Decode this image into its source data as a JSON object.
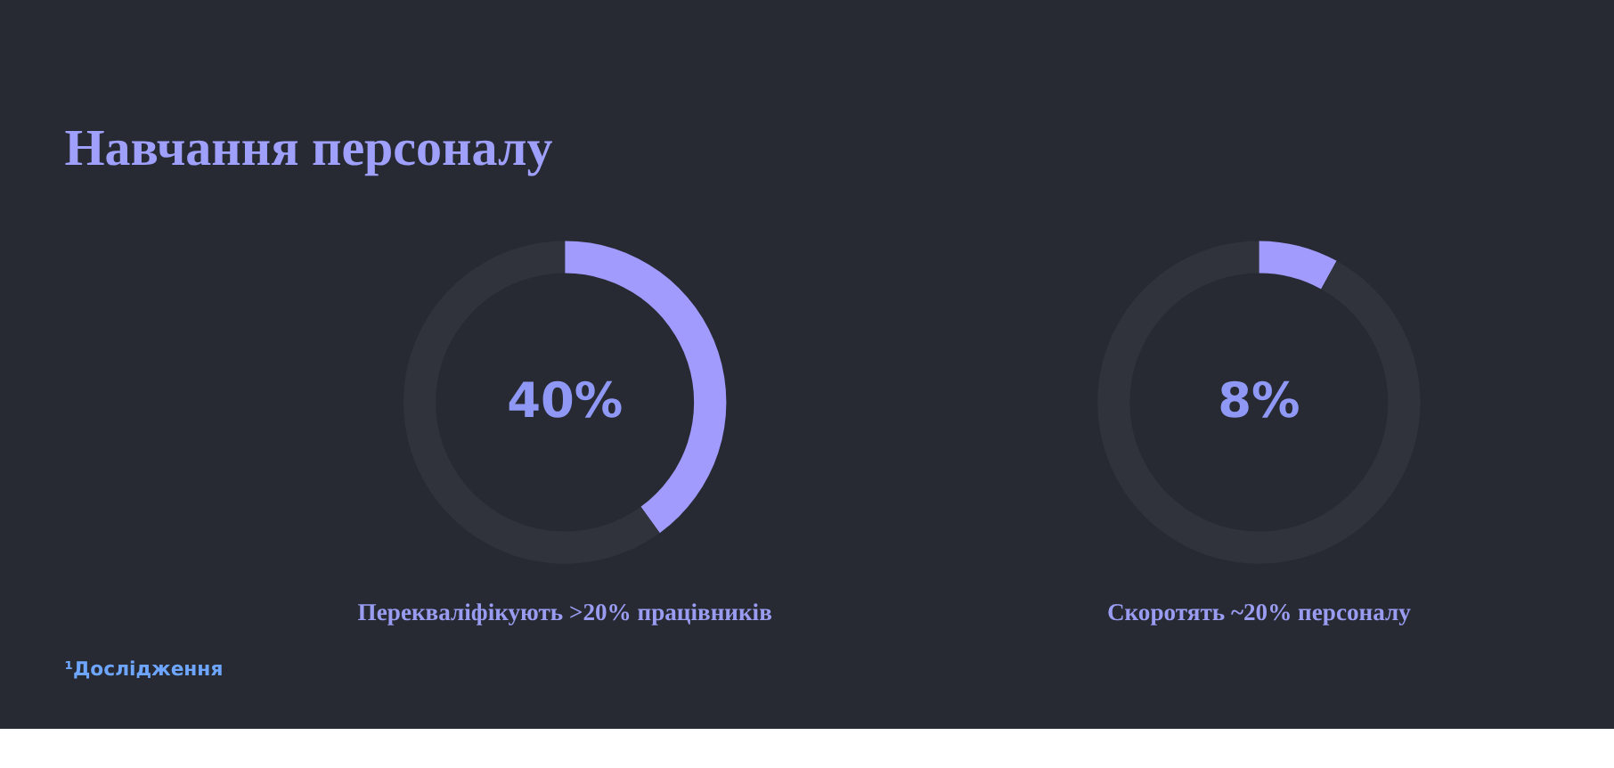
{
  "chart_data": [
    {
      "type": "donut",
      "title": "Навчання персоналу",
      "categories": [
        null,
        null
      ],
      "values": [
        40,
        60
      ],
      "colors": [
        "#a19bfd",
        "#30333b"
      ],
      "value_labels": [
        "40%",
        null
      ],
      "annotations": [
        "Перекваліфікують >20% працівників",
        "¹Дослідження"
      ]
    },
    {
      "type": "donut",
      "categories": [
        null,
        null
      ],
      "values": [
        8,
        92
      ],
      "colors": [
        "#a19bfd",
        "#30333b"
      ],
      "value_labels": [
        "8%",
        null
      ],
      "annotations": [
        "Скоротять ~20% персоналу"
      ]
    }
  ]
}
